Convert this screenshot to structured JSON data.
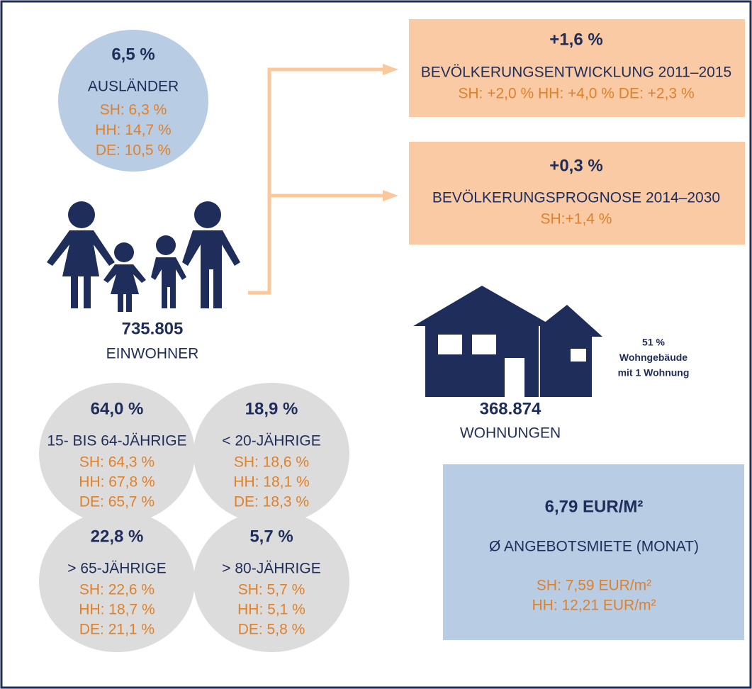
{
  "foreigners": {
    "value": "6,5 %",
    "label": "AUSLÄNDER",
    "comparisons": [
      "SH: 6,3 %",
      "HH: 14,7 %",
      "DE: 10,5 %"
    ]
  },
  "population": {
    "value": "735.805",
    "label": "EINWOHNER"
  },
  "development": {
    "value": "+1,6 %",
    "label": "BEVÖLKERUNGSENTWICKLUNG 2011–2015",
    "comparison": "SH: +2,0 %  HH: +4,0 %  DE: +2,3 %"
  },
  "forecast": {
    "value": "+0,3 %",
    "label": "BEVÖLKERUNGSPROGNOSE 2014–2030",
    "comparison": "SH:+1,4 %"
  },
  "housing": {
    "value": "368.874",
    "label": "WOHNUNGEN",
    "note": [
      "51 %",
      "Wohngebäude",
      "mit 1 Wohnung"
    ]
  },
  "rent": {
    "value": "6,79 EUR/M²",
    "label": "Ø ANGEBOTSMIETE (MONAT)",
    "comparisons": [
      "SH: 7,59 EUR/m²",
      "HH: 12,21 EUR/m²"
    ]
  },
  "age_groups": [
    {
      "value": "64,0 %",
      "label": "15- BIS 64-JÄHRIGE",
      "comparisons": [
        "SH: 64,3 %",
        "HH: 67,8 %",
        "DE: 65,7 %"
      ]
    },
    {
      "value": "18,9 %",
      "label": "< 20-JÄHRIGE",
      "comparisons": [
        "SH: 18,6 %",
        "HH: 18,1 %",
        "DE: 18,3 %"
      ]
    },
    {
      "value": "22,8 %",
      "label": "> 65-JÄHRIGE",
      "comparisons": [
        "SH: 22,6 %",
        "HH: 18,7 %",
        "DE: 21,1 %"
      ]
    },
    {
      "value": "5,7 %",
      "label": "> 80-JÄHRIGE",
      "comparisons": [
        "SH: 5,7 %",
        "HH: 5,1 %",
        "DE: 5,8 %"
      ]
    }
  ]
}
